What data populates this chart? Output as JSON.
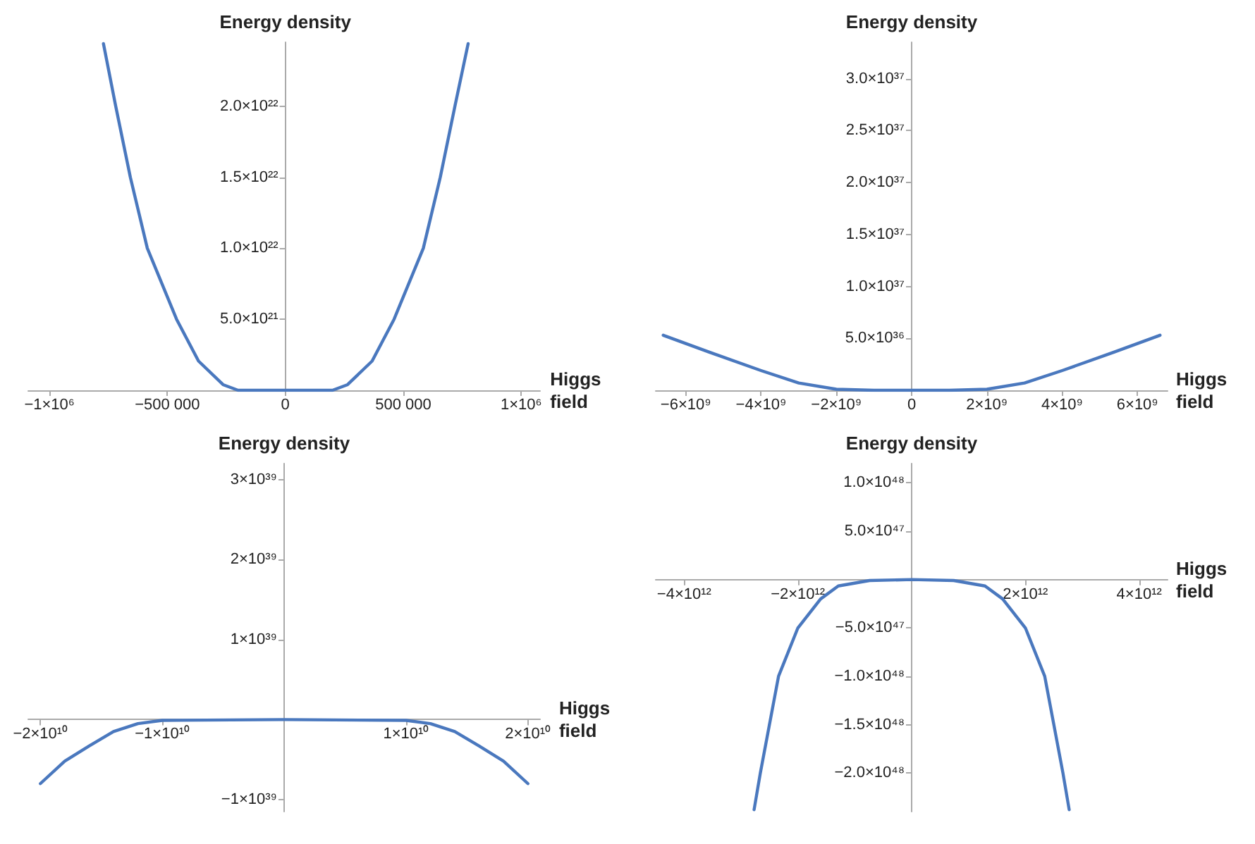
{
  "chart_data": [
    {
      "type": "line",
      "xlabel": "Higgs field",
      "ylabel": "Energy density",
      "color": "#4a78be",
      "marker": "none",
      "line_style": "solid",
      "grid": false,
      "x": [
        -771000,
        -719000,
        -657000,
        -585000,
        -461000,
        -368000,
        -264000,
        -200000,
        0,
        200000,
        264000,
        368000,
        461000,
        585000,
        657000,
        719000,
        775000
      ],
      "values": [
        2.44e+22,
        2e+22,
        1.5e+22,
        1e+22,
        5e+21,
        2.06e+21,
        4e+20,
        0,
        0,
        0,
        4e+20,
        2.06e+21,
        5e+21,
        1e+22,
        1.5e+22,
        2e+22,
        2.44e+22
      ],
      "xlim": [
        -1090000,
        1080000
      ],
      "ylim": [
        0,
        2.45e+22
      ],
      "xticks": [
        {
          "value": -1000000,
          "label": "−1×10⁶"
        },
        {
          "value": -500000,
          "label": "−500 000"
        },
        0,
        {
          "value": 500000,
          "label": "500 000"
        },
        {
          "value": 1000000,
          "label": "1×10⁶"
        }
      ],
      "yticks": [
        {
          "value": 5e+21,
          "label": "5.0×10²¹"
        },
        {
          "value": 1e+22,
          "label": "1.0×10²²"
        },
        {
          "value": 1.5e+22,
          "label": "1.5×10²²"
        },
        {
          "value": 2e+22,
          "label": "2.0×10²²"
        }
      ]
    },
    {
      "type": "line",
      "xlabel": "Higgs field",
      "ylabel": "Energy density",
      "color": "#4a78be",
      "marker": "none",
      "line_style": "solid",
      "grid": false,
      "x": [
        -6600000000.0,
        -5400000000.0,
        -4000000000.0,
        -3000000000.0,
        -2000000000.0,
        -1000000000.0,
        0,
        1000000000.0,
        2000000000.0,
        3000000000.0,
        4000000000.0,
        5400000000.0,
        6600000000.0
      ],
      "values": [
        5.3e+36,
        3.7e+36,
        1.9e+36,
        7e+35,
        1e+35,
        0,
        0,
        0,
        1e+35,
        7e+35,
        1.9e+36,
        3.7e+36,
        5.3e+36
      ],
      "xlim": [
        -6800000000.0,
        6800000000.0
      ],
      "ylim": [
        0,
        3.35e+37
      ],
      "xticks": [
        {
          "value": -6000000000.0,
          "label": "−6×10⁹"
        },
        {
          "value": -4000000000.0,
          "label": "−4×10⁹"
        },
        {
          "value": -2000000000.0,
          "label": "−2×10⁹"
        },
        0,
        {
          "value": 2000000000.0,
          "label": "2×10⁹"
        },
        {
          "value": 4000000000.0,
          "label": "4×10⁹"
        },
        {
          "value": 6000000000.0,
          "label": "6×10⁹"
        }
      ],
      "yticks": [
        {
          "value": 5e+36,
          "label": "5.0×10³⁶"
        },
        {
          "value": 1e+37,
          "label": "1.0×10³⁷"
        },
        {
          "value": 1.5e+37,
          "label": "1.5×10³⁷"
        },
        {
          "value": 2e+37,
          "label": "2.0×10³⁷"
        },
        {
          "value": 2.5e+37,
          "label": "2.5×10³⁷"
        },
        {
          "value": 3e+37,
          "label": "3.0×10³⁷"
        }
      ]
    },
    {
      "type": "line",
      "xlabel": "Higgs field",
      "ylabel": "Energy density",
      "color": "#4a78be",
      "marker": "none",
      "line_style": "solid",
      "grid": false,
      "x": [
        -20000000000.0,
        -18000000000.0,
        -16000000000.0,
        -14000000000.0,
        -12000000000.0,
        -10000000000.0,
        0,
        10000000000.0,
        12000000000.0,
        14000000000.0,
        16000000000.0,
        18000000000.0,
        20000000000.0
      ],
      "values": [
        -8e+38,
        -5.2e+38,
        -3.3e+38,
        -1.5e+38,
        -5e+37,
        -1e+37,
        0,
        -1e+37,
        -5e+37,
        -1.5e+38,
        -3.3e+38,
        -5.2e+38,
        -8e+38
      ],
      "xlim": [
        -21000000000.0,
        21000000000.0
      ],
      "ylim": [
        -1.15e+39,
        3.2e+39
      ],
      "xticks": [
        {
          "value": -20000000000.0,
          "label": "−2×10¹⁰"
        },
        {
          "value": -10000000000.0,
          "label": "−1×10¹⁰"
        },
        {
          "value": 10000000000.0,
          "label": "1×10¹⁰"
        },
        {
          "value": 20000000000.0,
          "label": "2×10¹⁰"
        }
      ],
      "yticks": [
        {
          "value": -1e+39,
          "label": "−1×10³⁹"
        },
        {
          "value": 1e+39,
          "label": "1×10³⁹"
        },
        {
          "value": 2e+39,
          "label": "2×10³⁹"
        },
        {
          "value": 3e+39,
          "label": "3×10³⁹"
        }
      ]
    },
    {
      "type": "line",
      "xlabel": "Higgs field",
      "ylabel": "Energy density",
      "color": "#4a78be",
      "marker": "none",
      "line_style": "solid",
      "grid": false,
      "x": [
        -2770000000000.0,
        -2660000000000.0,
        -2340000000000.0,
        -2000000000000.0,
        -1600000000000.0,
        -1290000000000.0,
        -740000000000.0,
        0,
        740000000000.0,
        1290000000000.0,
        1600000000000.0,
        2000000000000.0,
        2340000000000.0,
        2660000000000.0,
        2770000000000.0
      ],
      "values": [
        -2.38e+48,
        -2e+48,
        -1e+48,
        -5e+47,
        -2e+47,
        -6.6e+46,
        -1e+46,
        0,
        -1e+46,
        -6.6e+46,
        -2e+47,
        -5e+47,
        -1e+48,
        -2e+48,
        -2.38e+48
      ],
      "xlim": [
        -4500000000000.0,
        4500000000000.0
      ],
      "ylim": [
        -2.4e+48,
        1.2e+48
      ],
      "xticks": [
        {
          "value": -4000000000000.0,
          "label": "−4×10¹²"
        },
        {
          "value": -2000000000000.0,
          "label": "−2×10¹²"
        },
        {
          "value": 2000000000000.0,
          "label": "2×10¹²"
        },
        {
          "value": 4000000000000.0,
          "label": "4×10¹²"
        }
      ],
      "yticks": [
        {
          "value": -2e+48,
          "label": "−2.0×10⁴⁸"
        },
        {
          "value": -1.5e+48,
          "label": "−1.5×10⁴⁸"
        },
        {
          "value": -1e+48,
          "label": "−1.0×10⁴⁸"
        },
        {
          "value": -5e+47,
          "label": "−5.0×10⁴⁷"
        },
        {
          "value": 5e+47,
          "label": "5.0×10⁴⁷"
        },
        {
          "value": 1e+48,
          "label": "1.0×10⁴⁸"
        }
      ]
    }
  ]
}
